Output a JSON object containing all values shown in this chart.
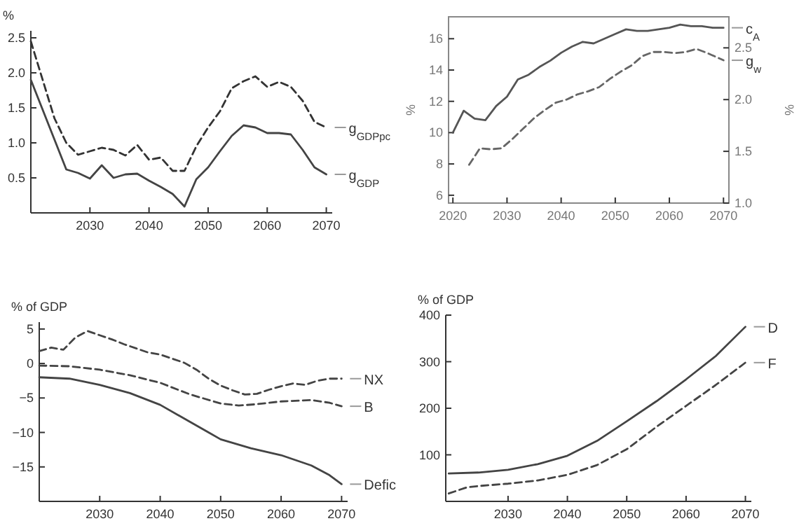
{
  "chart_data": [
    {
      "type": "line",
      "ylabel": "%",
      "xlim": [
        2020,
        2071
      ],
      "ylim": [
        0,
        2.6
      ],
      "xticks": [
        2030,
        2040,
        2050,
        2060,
        2070
      ],
      "yticks": [
        0.5,
        {
          "value": 1,
          "label": "1.0"
        },
        1.5,
        {
          "value": 2,
          "label": "2.0"
        },
        2.5
      ],
      "grid": false,
      "marker": "none",
      "series": [
        {
          "name": "g$_{GDPpc}$",
          "color": "#333333",
          "line_style": "dashed",
          "x": [
            2020,
            2024,
            2026,
            2028,
            2030,
            2032,
            2034,
            2036,
            2038,
            2040,
            2042,
            2044,
            2046,
            2048,
            2050,
            2052,
            2054,
            2056,
            2058,
            2060,
            2062,
            2064,
            2066,
            2068,
            2070
          ],
          "values": [
            2.45,
            1.35,
            1.0,
            0.83,
            0.88,
            0.93,
            0.9,
            0.82,
            0.97,
            0.76,
            0.79,
            0.6,
            0.6,
            0.95,
            1.22,
            1.45,
            1.78,
            1.88,
            1.95,
            1.8,
            1.87,
            1.8,
            1.6,
            1.3,
            1.22
          ]
        },
        {
          "name": "g$_{GDP}$",
          "color": "#444444",
          "line_style": "solid",
          "x": [
            2020,
            2026,
            2028,
            2030,
            2032,
            2034,
            2036,
            2038,
            2040,
            2042,
            2044,
            2046,
            2048,
            2050,
            2052,
            2054,
            2056,
            2058,
            2060,
            2062,
            2064,
            2066,
            2068,
            2070
          ],
          "values": [
            1.9,
            0.62,
            0.57,
            0.49,
            0.68,
            0.5,
            0.55,
            0.56,
            0.46,
            0.37,
            0.27,
            0.09,
            0.48,
            0.65,
            0.88,
            1.1,
            1.25,
            1.22,
            1.14,
            1.14,
            1.12,
            0.9,
            0.65,
            0.55
          ]
        }
      ]
    },
    {
      "type": "line",
      "ylabel": "%",
      "y2label": "%",
      "xlim": [
        2019.2,
        2071
      ],
      "ylim": [
        5.5,
        17.4
      ],
      "y2lim": [
        1.0,
        2.8
      ],
      "xticks": [
        2020,
        2030,
        2040,
        2050,
        2060,
        2070
      ],
      "yticks": [
        6,
        8,
        10,
        12,
        14,
        16
      ],
      "y2ticks": [
        {
          "value": 1,
          "label": "1.0"
        },
        1.5,
        {
          "value": 2,
          "label": "2.0"
        },
        2.5
      ],
      "grid": false,
      "marker": "none",
      "series": [
        {
          "name": "c$_{A}$",
          "color": "#555555",
          "line_style": "solid",
          "x": [
            2020,
            2022,
            2024,
            2026,
            2028,
            2030,
            2032,
            2034,
            2036,
            2038,
            2040,
            2042,
            2044,
            2046,
            2048,
            2050,
            2052,
            2054,
            2056,
            2058,
            2060,
            2062,
            2064,
            2066,
            2068,
            2070
          ],
          "values": [
            10,
            11.4,
            10.9,
            10.8,
            11.7,
            12.3,
            13.4,
            13.7,
            14.2,
            14.6,
            15.1,
            15.5,
            15.8,
            15.7,
            16.0,
            16.3,
            16.6,
            16.5,
            16.5,
            16.6,
            16.7,
            16.9,
            16.8,
            16.8,
            16.7,
            16.7
          ]
        },
        {
          "name": "g$_{w}$",
          "color": "#666666",
          "line_style": "dashed",
          "axis": "y2",
          "x": [
            2023,
            2025,
            2027,
            2029,
            2031,
            2033,
            2035,
            2037,
            2039,
            2041,
            2043,
            2045,
            2047,
            2049,
            2051,
            2053,
            2055,
            2057,
            2059,
            2061,
            2063,
            2065,
            2067,
            2070
          ],
          "values": [
            1.37,
            1.53,
            1.52,
            1.53,
            1.62,
            1.72,
            1.82,
            1.9,
            1.97,
            2.0,
            2.05,
            2.08,
            2.12,
            2.2,
            2.27,
            2.33,
            2.42,
            2.46,
            2.46,
            2.45,
            2.46,
            2.49,
            2.45,
            2.38
          ]
        }
      ]
    },
    {
      "type": "line",
      "ylabel": "% of GDP",
      "xlim": [
        2020,
        2071
      ],
      "ylim": [
        -20,
        6
      ],
      "xticks": [
        2030,
        2040,
        2050,
        2060,
        2070
      ],
      "yticks": [
        {
          "value": -15,
          "label": "−15"
        },
        {
          "value": -10,
          "label": "−10"
        },
        {
          "value": -5,
          "label": "−5"
        },
        0,
        5
      ],
      "grid": false,
      "marker": "none",
      "series": [
        {
          "name": "NX",
          "color": "#444444",
          "line_style": "dashed",
          "x": [
            2020,
            2022,
            2024,
            2026,
            2028,
            2030,
            2032,
            2034,
            2036,
            2038,
            2040,
            2042,
            2044,
            2046,
            2048,
            2050,
            2052,
            2054,
            2056,
            2058,
            2060,
            2062,
            2064,
            2066,
            2068,
            2070
          ],
          "values": [
            1.8,
            2.3,
            2.0,
            3.8,
            4.7,
            4.1,
            3.5,
            2.8,
            2.2,
            1.6,
            1.3,
            0.7,
            0.1,
            -0.9,
            -2.2,
            -3.2,
            -3.9,
            -4.5,
            -4.4,
            -3.8,
            -3.3,
            -2.9,
            -3.1,
            -2.5,
            -2.2,
            -2.2
          ]
        },
        {
          "name": "B",
          "color": "#444444",
          "line_style": "dashed",
          "x": [
            2020,
            2025,
            2030,
            2035,
            2040,
            2045,
            2050,
            2053,
            2056,
            2060,
            2065,
            2068,
            2070
          ],
          "values": [
            -0.3,
            -0.4,
            -0.9,
            -1.7,
            -2.8,
            -4.5,
            -5.8,
            -6.1,
            -5.9,
            -5.5,
            -5.3,
            -5.7,
            -6.2
          ]
        },
        {
          "name": "Defic",
          "color": "#444444",
          "line_style": "solid",
          "x": [
            2020,
            2025,
            2030,
            2035,
            2040,
            2045,
            2048,
            2050,
            2055,
            2060,
            2065,
            2068,
            2070
          ],
          "values": [
            -2.0,
            -2.2,
            -3.1,
            -4.3,
            -6.0,
            -8.5,
            -10.0,
            -11.0,
            -12.3,
            -13.3,
            -14.8,
            -16.2,
            -17.5
          ]
        }
      ]
    },
    {
      "type": "line",
      "ylabel": "% of GDP",
      "xlim": [
        2019.5,
        2071
      ],
      "ylim": [
        0,
        400
      ],
      "xticks": [
        2030,
        2040,
        2050,
        2060,
        2070
      ],
      "yticks": [
        100,
        200,
        300,
        400
      ],
      "grid": false,
      "marker": "none",
      "series": [
        {
          "name": "D",
          "color": "#444444",
          "line_style": "solid",
          "x": [
            2020,
            2025,
            2030,
            2035,
            2040,
            2045,
            2050,
            2055,
            2060,
            2065,
            2070
          ],
          "values": [
            60,
            62,
            68,
            80,
            98,
            130,
            172,
            215,
            262,
            312,
            375
          ]
        },
        {
          "name": "F",
          "color": "#444444",
          "line_style": "dashed",
          "x": [
            2020,
            2023,
            2025,
            2030,
            2035,
            2040,
            2045,
            2050,
            2055,
            2060,
            2065,
            2070
          ],
          "values": [
            17,
            30,
            33,
            38,
            45,
            57,
            78,
            112,
            160,
            205,
            250,
            298
          ]
        }
      ]
    }
  ]
}
